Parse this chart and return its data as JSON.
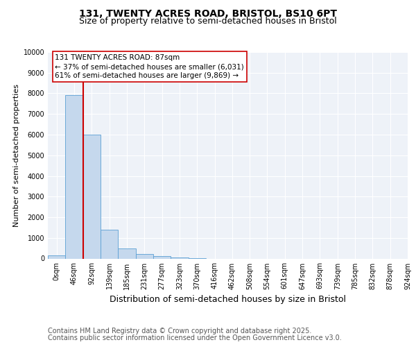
{
  "title_line1": "131, TWENTY ACRES ROAD, BRISTOL, BS10 6PT",
  "title_line2": "Size of property relative to semi-detached houses in Bristol",
  "bar_values": [
    150,
    7900,
    6000,
    1380,
    480,
    220,
    130,
    50,
    30,
    0,
    0,
    0,
    0,
    0,
    0,
    0,
    0,
    0,
    0,
    0
  ],
  "x_labels": [
    "0sqm",
    "46sqm",
    "92sqm",
    "139sqm",
    "185sqm",
    "231sqm",
    "277sqm",
    "323sqm",
    "370sqm",
    "416sqm",
    "462sqm",
    "508sqm",
    "554sqm",
    "601sqm",
    "647sqm",
    "693sqm",
    "739sqm",
    "785sqm",
    "832sqm",
    "878sqm",
    "924sqm"
  ],
  "ylabel": "Number of semi-detached properties",
  "xlabel": "Distribution of semi-detached houses by size in Bristol",
  "ylim": [
    0,
    10000
  ],
  "yticks": [
    0,
    1000,
    2000,
    3000,
    4000,
    5000,
    6000,
    7000,
    8000,
    9000,
    10000
  ],
  "bar_color": "#c5d8ed",
  "bar_edge_color": "#5a9fd4",
  "vline_color": "#cc0000",
  "annotation_title": "131 TWENTY ACRES ROAD: 87sqm",
  "annotation_line1": "← 37% of semi-detached houses are smaller (6,031)",
  "annotation_line2": "61% of semi-detached houses are larger (9,869) →",
  "annotation_box_edge": "#cc0000",
  "footer_line1": "Contains HM Land Registry data © Crown copyright and database right 2025.",
  "footer_line2": "Contains public sector information licensed under the Open Government Licence v3.0.",
  "bg_color": "#eef2f8",
  "title_fontsize": 10,
  "subtitle_fontsize": 9,
  "tick_fontsize": 7,
  "ylabel_fontsize": 8,
  "xlabel_fontsize": 9,
  "footer_fontsize": 7,
  "ann_fontsize": 7.5
}
